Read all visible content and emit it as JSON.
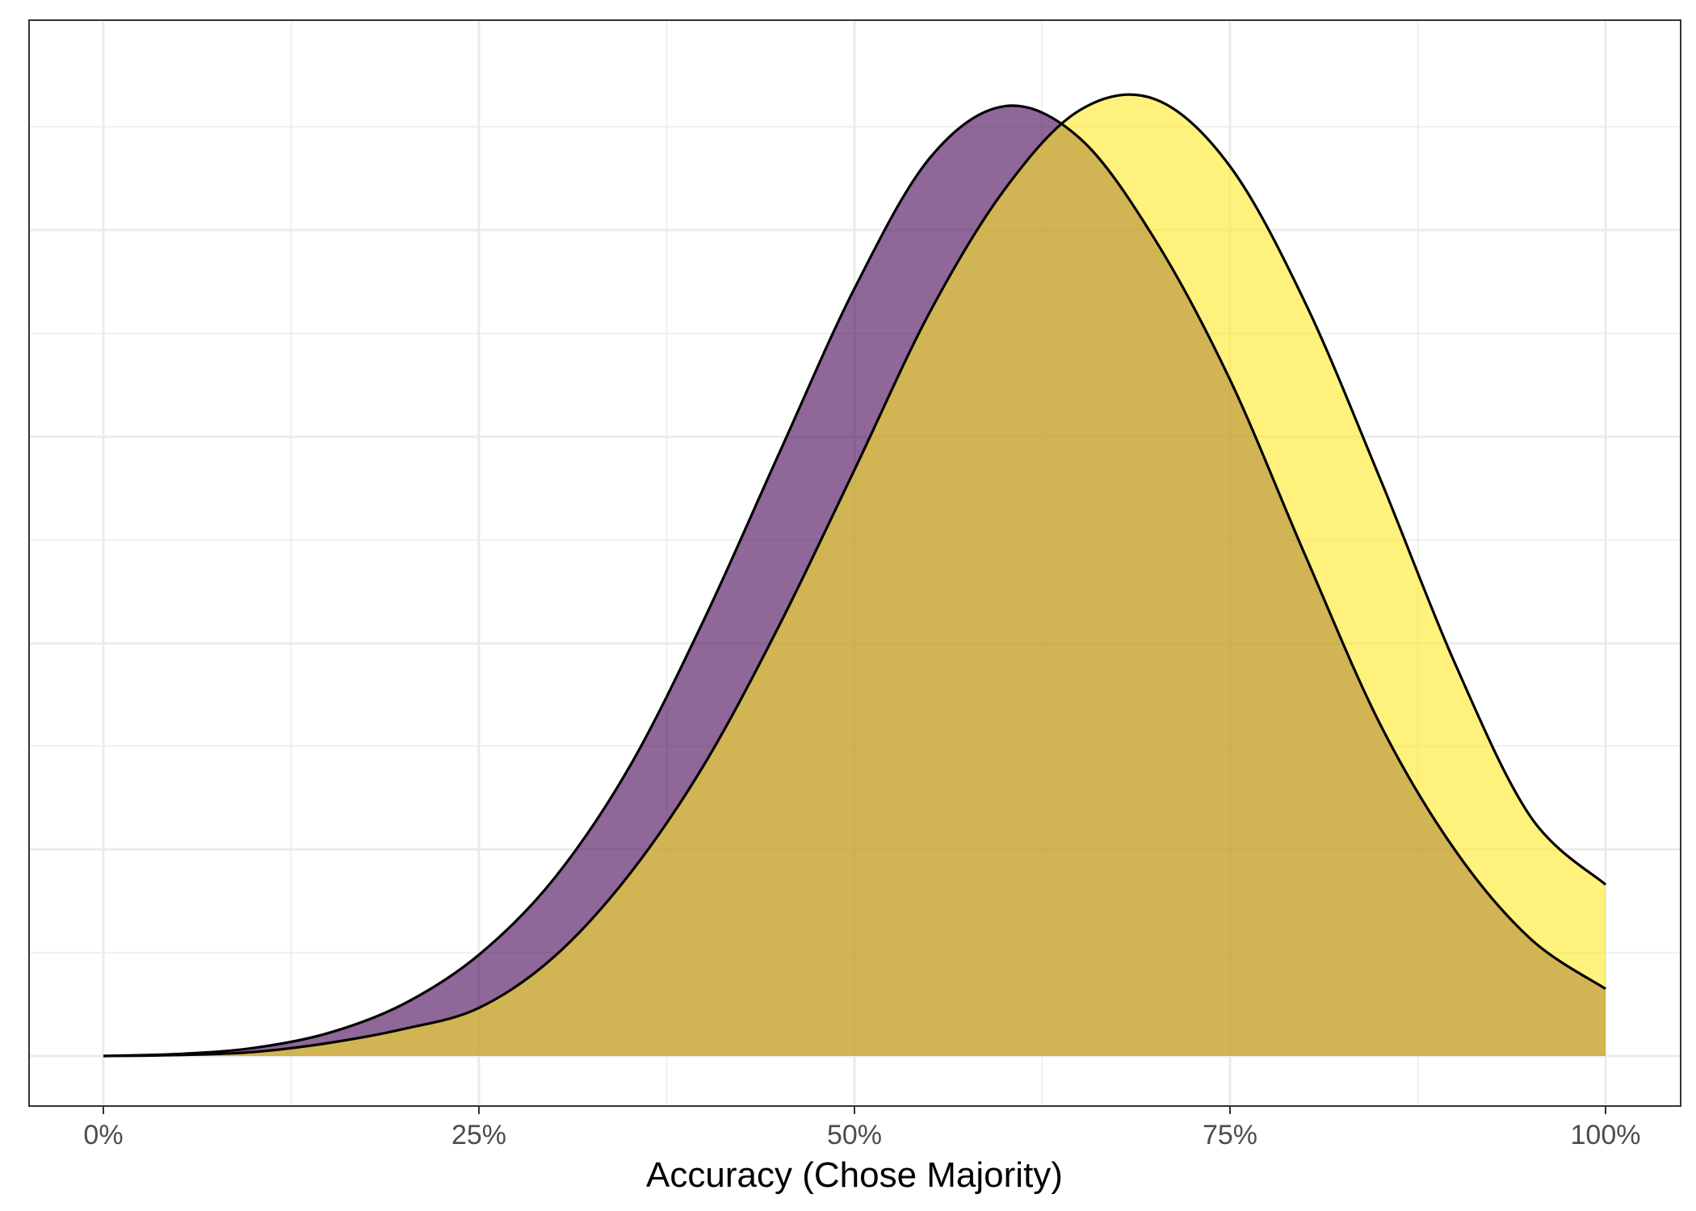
{
  "chart_data": {
    "type": "area",
    "title": "",
    "xlabel": "Accuracy (Chose Majority)",
    "ylabel": "",
    "xlim": [
      0,
      1
    ],
    "ylim": [
      0,
      1
    ],
    "x_ticks": [
      0,
      0.25,
      0.5,
      0.75,
      1
    ],
    "x_tick_labels": [
      "0%",
      "25%",
      "50%",
      "75%",
      "100%"
    ],
    "grid": true,
    "legend": "none",
    "x": [
      0,
      0.05,
      0.1,
      0.15,
      0.2,
      0.25,
      0.3,
      0.35,
      0.4,
      0.45,
      0.5,
      0.55,
      0.6,
      0.65,
      0.7,
      0.75,
      0.8,
      0.85,
      0.9,
      0.95,
      1
    ],
    "series": [
      {
        "color": "#440154",
        "values": [
          0.0,
          0.002,
          0.008,
          0.023,
          0.052,
          0.101,
          0.177,
          0.288,
          0.436,
          0.602,
          0.766,
          0.896,
          0.948,
          0.916,
          0.815,
          0.675,
          0.5,
          0.331,
          0.205,
          0.117,
          0.067
        ]
      },
      {
        "color": "#FDE725",
        "values": [
          0.0,
          0.001,
          0.004,
          0.013,
          0.027,
          0.048,
          0.099,
          0.181,
          0.291,
          0.43,
          0.585,
          0.742,
          0.865,
          0.944,
          0.955,
          0.888,
          0.752,
          0.576,
          0.391,
          0.239,
          0.171
        ]
      }
    ]
  }
}
